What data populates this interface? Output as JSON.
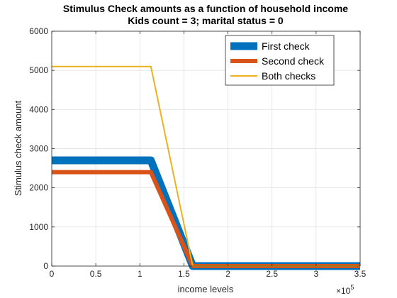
{
  "chart_data": {
    "type": "line",
    "title": "Stimulus Check amounts as a function of household income",
    "subtitle": "Kids count = 3; marital status = 0",
    "xlabel": "income levels",
    "ylabel": "Stimulus check amount",
    "x_exponent_label": "×10",
    "x_exponent_power": "5",
    "xlim": [
      0,
      350000
    ],
    "ylim": [
      0,
      6000
    ],
    "xticks": [
      0,
      50000,
      100000,
      150000,
      200000,
      250000,
      300000,
      350000
    ],
    "xtick_labels": [
      "0",
      "0.5",
      "1",
      "1.5",
      "2",
      "2.5",
      "3",
      "3.5"
    ],
    "yticks": [
      0,
      1000,
      2000,
      3000,
      4000,
      5000,
      6000
    ],
    "ytick_labels": [
      "0",
      "1000",
      "2000",
      "3000",
      "4000",
      "5000",
      "6000"
    ],
    "grid": true,
    "legend_position": "top-right",
    "series": [
      {
        "name": "First check",
        "color": "#0072BD",
        "x": [
          0,
          112500,
          160000,
          350000
        ],
        "y": [
          2700,
          2700,
          0,
          0
        ]
      },
      {
        "name": "Second check",
        "color": "#D95319",
        "x": [
          0,
          112500,
          160000,
          350000
        ],
        "y": [
          2400,
          2400,
          0,
          0
        ]
      },
      {
        "name": "Both checks",
        "color": "#EDB120",
        "x": [
          0,
          112500,
          160000,
          350000
        ],
        "y": [
          5100,
          5100,
          0,
          0
        ]
      }
    ]
  }
}
